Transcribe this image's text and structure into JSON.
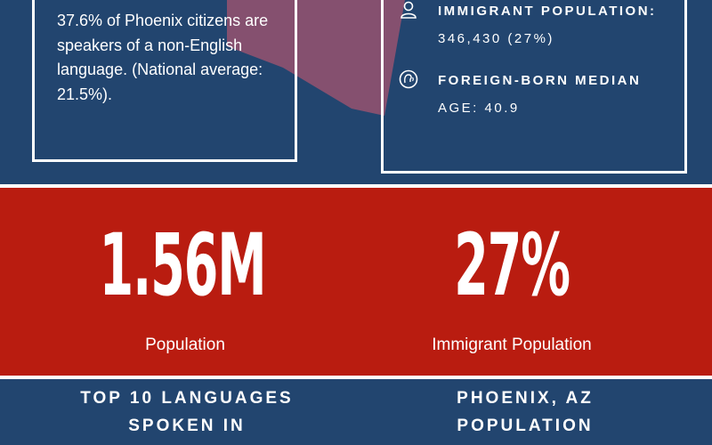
{
  "left_box": {
    "text": "37.6% of Phoenix citizens are speakers of a non-English language. (National average: 21.5%)."
  },
  "right_box": {
    "stats": [
      {
        "icon": "person-icon",
        "label": "IMMIGRANT POPULATION:",
        "value": "346,430 (27%)"
      },
      {
        "icon": "speaking-head-icon",
        "label": "FOREIGN-BORN MEDIAN",
        "value": "AGE: 40.9"
      }
    ]
  },
  "big_stats": [
    {
      "value": "1.56M",
      "caption": "Population"
    },
    {
      "value": "27%",
      "caption": "Immigrant Population"
    }
  ],
  "sections": {
    "left_title_line1": "TOP 10 LANGUAGES",
    "left_title_line2": "SPOKEN IN",
    "right_title_line1": "PHOENIX, AZ",
    "right_title_line2": "POPULATION"
  },
  "colors": {
    "navy": "#22456f",
    "red": "#b91c10",
    "state_shape": "#85506f"
  }
}
